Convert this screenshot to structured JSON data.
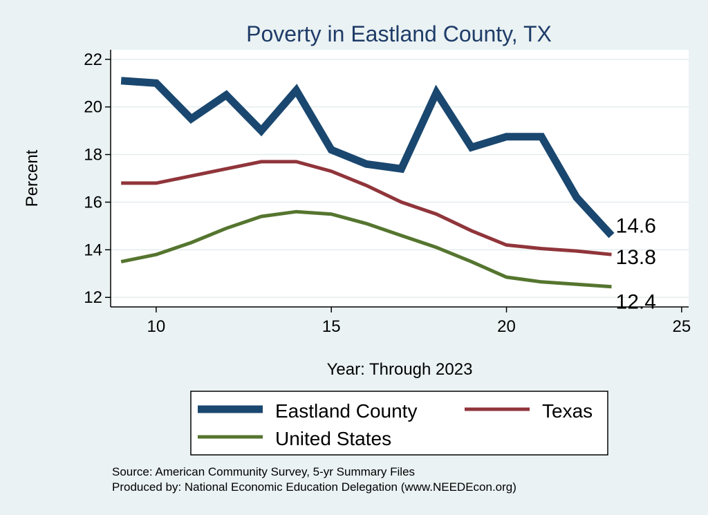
{
  "chart_data": {
    "type": "line",
    "title": "Poverty in Eastland County, TX",
    "xlabel": "Year: Through 2023",
    "ylabel": "Percent",
    "xlim": [
      8.7,
      25.2
    ],
    "ylim": [
      11.6,
      22.4
    ],
    "xticks": [
      10,
      15,
      20,
      25
    ],
    "yticks": [
      12,
      14,
      16,
      18,
      20,
      22
    ],
    "grid": true,
    "legend_position": "bottom",
    "x": [
      9,
      10,
      11,
      12,
      13,
      14,
      15,
      16,
      17,
      18,
      19,
      20,
      21,
      22,
      23
    ],
    "series": [
      {
        "name": "Eastland County",
        "color": "#1a476f",
        "values": [
          21.1,
          21.0,
          19.5,
          20.5,
          19.0,
          20.7,
          18.2,
          17.6,
          17.4,
          20.6,
          18.3,
          18.75,
          18.75,
          16.2,
          14.6
        ],
        "end_label": "14.6"
      },
      {
        "name": "Texas",
        "color": "#90353b",
        "values": [
          16.8,
          16.8,
          17.1,
          17.4,
          17.7,
          17.7,
          17.3,
          16.7,
          16.0,
          15.5,
          14.8,
          14.2,
          14.05,
          13.95,
          13.8
        ],
        "end_label": "13.8"
      },
      {
        "name": "United States",
        "color": "#55752f",
        "values": [
          13.5,
          13.8,
          14.3,
          14.9,
          15.4,
          15.6,
          15.5,
          15.1,
          14.6,
          14.1,
          13.5,
          12.85,
          12.65,
          12.55,
          12.45
        ],
        "end_label": "12.4"
      }
    ],
    "source_lines": [
      "Source: American Community Survey, 5-yr Summary Files",
      "Produced by: National Economic Education Delegation (www.NEEDEcon.org)"
    ]
  }
}
